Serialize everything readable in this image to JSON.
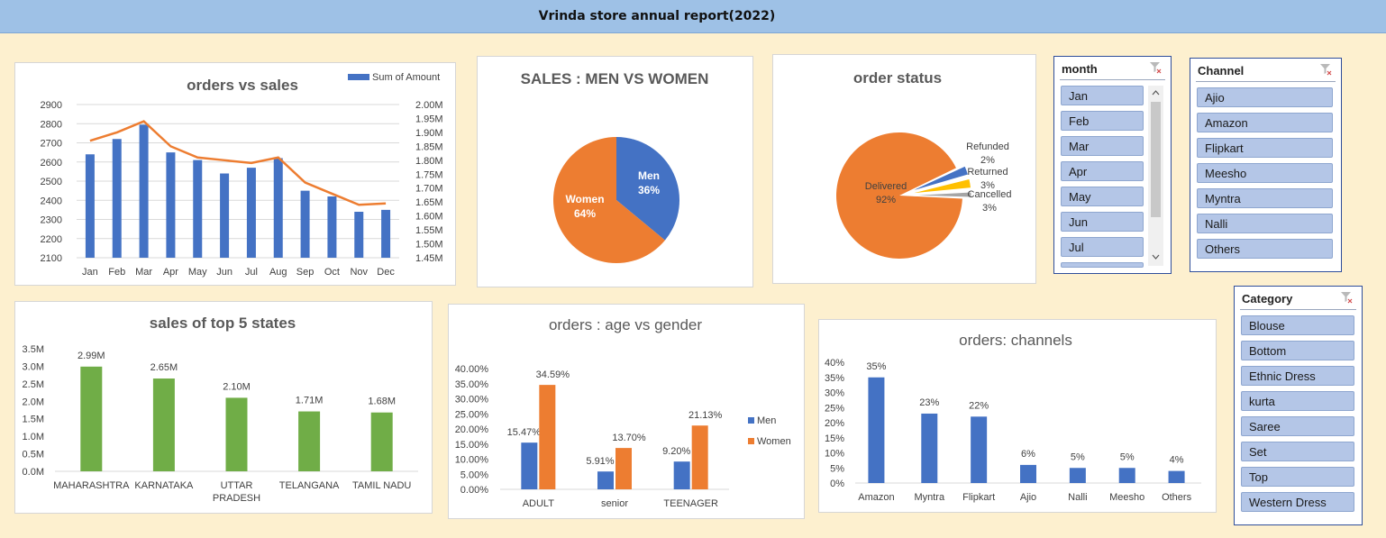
{
  "report_title": "Vrinda store annual report(2022)",
  "colors": {
    "blue": "#4472c4",
    "orange": "#ed7d31",
    "green": "#70ad47",
    "gray": "#a5a5a5",
    "yellow": "#ffc000"
  },
  "chart_data": [
    {
      "type": "bar",
      "id": "orders-vs-sales",
      "title": "orders vs sales",
      "categories": [
        "Jan",
        "Feb",
        "Mar",
        "Apr",
        "May",
        "Jun",
        "Jul",
        "Aug",
        "Sep",
        "Oct",
        "Nov",
        "Dec"
      ],
      "series": [
        {
          "name": "Sum of Amount",
          "type": "bar",
          "axis": "left",
          "values": [
            2640,
            2720,
            2795,
            2650,
            2610,
            2540,
            2570,
            2620,
            2450,
            2420,
            2340,
            2350
          ]
        },
        {
          "type": "line",
          "axis": "right",
          "values": [
            1.87,
            1.9,
            1.94,
            1.85,
            1.81,
            1.8,
            1.79,
            1.81,
            1.72,
            1.68,
            1.64,
            1.645
          ]
        }
      ],
      "yticks_left": [
        "2100",
        "2200",
        "2300",
        "2400",
        "2500",
        "2600",
        "2700",
        "2800",
        "2900"
      ],
      "yticks_right": [
        "1.45M",
        "1.50M",
        "1.55M",
        "1.60M",
        "1.65M",
        "1.70M",
        "1.75M",
        "1.80M",
        "1.85M",
        "1.90M",
        "1.95M",
        "2.00M"
      ],
      "ylim_left": [
        2100,
        2900
      ],
      "ylim_right": [
        1.45,
        2.0
      ],
      "legend": "top-right",
      "grid": true
    },
    {
      "type": "pie",
      "id": "sales-men-women",
      "title": "SALES : MEN VS WOMEN",
      "slices": [
        {
          "label": "Men",
          "pct_label": "36%",
          "value": 36
        },
        {
          "label": "Women",
          "pct_label": "64%",
          "value": 64
        }
      ]
    },
    {
      "type": "pie",
      "id": "order-status",
      "title": "order status",
      "slices": [
        {
          "label": "Delivered",
          "pct_label": "92%",
          "value": 92
        },
        {
          "label": "Cancelled",
          "pct_label": "3%",
          "value": 3
        },
        {
          "label": "Returned",
          "pct_label": "3%",
          "value": 3
        },
        {
          "label": "Refunded",
          "pct_label": "2%",
          "value": 2
        }
      ]
    },
    {
      "type": "bar",
      "id": "top-5-states",
      "title": "sales of top 5 states",
      "categories": [
        "MAHARASHTRA",
        "KARNATAKA",
        "UTTAR PRADESH",
        "TELANGANA",
        "TAMIL NADU"
      ],
      "values": [
        2.99,
        2.65,
        2.1,
        1.71,
        1.68
      ],
      "data_labels": [
        "2.99M",
        "2.65M",
        "2.10M",
        "1.71M",
        "1.68M"
      ],
      "yticks": [
        "0.0M",
        "0.5M",
        "1.0M",
        "1.5M",
        "2.0M",
        "2.5M",
        "3.0M",
        "3.5M"
      ],
      "ylim": [
        0,
        3.5
      ]
    },
    {
      "type": "bar",
      "id": "age-vs-gender",
      "title": "orders : age vs gender",
      "categories": [
        "ADULT",
        "senior",
        "TEENAGER"
      ],
      "series": [
        {
          "name": "Men",
          "values": [
            15.47,
            5.91,
            9.2
          ],
          "labels": [
            "15.47%",
            "5.91%",
            "9.20%"
          ]
        },
        {
          "name": "Women",
          "values": [
            34.59,
            13.7,
            21.13
          ],
          "labels": [
            "34.59%",
            "13.70%",
            "21.13%"
          ]
        }
      ],
      "yticks": [
        "0.00%",
        "5.00%",
        "10.00%",
        "15.00%",
        "20.00%",
        "25.00%",
        "30.00%",
        "35.00%",
        "40.00%"
      ],
      "ylim": [
        0,
        40
      ],
      "legend": "right"
    },
    {
      "type": "bar",
      "id": "orders-channels",
      "title": "orders: channels",
      "categories": [
        "Amazon",
        "Myntra",
        "Flipkart",
        "Ajio",
        "Nalli",
        "Meesho",
        "Others"
      ],
      "values": [
        35,
        23,
        22,
        6,
        5,
        5,
        4
      ],
      "data_labels": [
        "35%",
        "23%",
        "22%",
        "6%",
        "5%",
        "5%",
        "4%"
      ],
      "yticks": [
        "0%",
        "5%",
        "10%",
        "15%",
        "20%",
        "25%",
        "30%",
        "35%",
        "40%"
      ],
      "ylim": [
        0,
        40
      ]
    }
  ],
  "slicers": {
    "month": {
      "title": "month",
      "items": [
        "Jan",
        "Feb",
        "Mar",
        "Apr",
        "May",
        "Jun",
        "Jul"
      ]
    },
    "channel": {
      "title": "Channel",
      "items": [
        "Ajio",
        "Amazon",
        "Flipkart",
        "Meesho",
        "Myntra",
        "Nalli",
        "Others"
      ]
    },
    "category": {
      "title": "Category",
      "items": [
        "Blouse",
        "Bottom",
        "Ethnic Dress",
        "kurta",
        "Saree",
        "Set",
        "Top",
        "Western Dress"
      ]
    }
  }
}
